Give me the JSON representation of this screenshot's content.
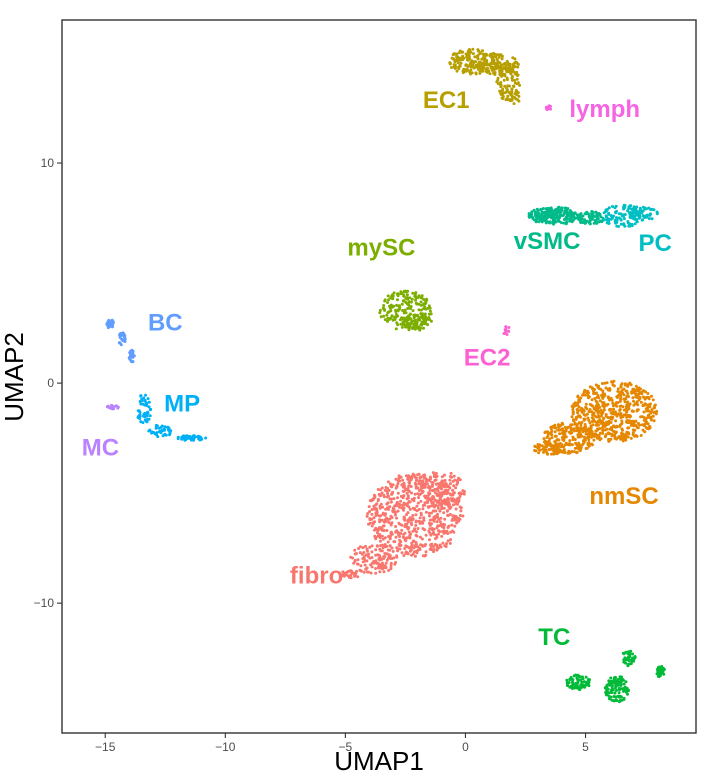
{
  "chart_data": {
    "type": "scatter",
    "title": "",
    "xlabel": "UMAP1",
    "ylabel": "UMAP2",
    "xlim": [
      -16.8,
      9.6
    ],
    "ylim": [
      -15.9,
      16.5
    ],
    "xticks": [
      -15,
      -10,
      -5,
      0,
      5
    ],
    "yticks": [
      -10,
      0,
      10
    ],
    "xtick_labels": [
      "−15",
      "−10",
      "−5",
      "0",
      "5"
    ],
    "ytick_labels": [
      "−10",
      "0",
      "10"
    ],
    "grid": false,
    "legend": "none",
    "clusters": [
      {
        "name": "EC1",
        "color": "#B79F00",
        "label_at": [
          -0.8,
          12.5
        ],
        "regions": [
          {
            "cx": 0.3,
            "cy": 14.6,
            "rx": 1.0,
            "ry": 0.6,
            "n": 160
          },
          {
            "cx": 1.4,
            "cy": 14.5,
            "rx": 0.9,
            "ry": 0.5,
            "n": 120
          },
          {
            "cx": 1.8,
            "cy": 13.6,
            "rx": 0.5,
            "ry": 0.8,
            "n": 80
          },
          {
            "cx": 2.0,
            "cy": 13.0,
            "rx": 0.3,
            "ry": 0.3,
            "n": 20
          }
        ]
      },
      {
        "name": "lymph",
        "color": "#F564E3",
        "label_at": [
          5.8,
          12.1
        ],
        "regions": [
          {
            "cx": 3.5,
            "cy": 12.5,
            "rx": 0.15,
            "ry": 0.1,
            "n": 12
          }
        ]
      },
      {
        "name": "vSMC",
        "color": "#00BA8A",
        "label_at": [
          3.4,
          6.1
        ],
        "regions": [
          {
            "cx": 3.7,
            "cy": 7.6,
            "rx": 1.1,
            "ry": 0.4,
            "n": 200
          },
          {
            "cx": 5.2,
            "cy": 7.5,
            "rx": 0.6,
            "ry": 0.3,
            "n": 80
          }
        ]
      },
      {
        "name": "PC",
        "color": "#00BFC4",
        "label_at": [
          7.9,
          6.0
        ],
        "regions": [
          {
            "cx": 6.6,
            "cy": 7.6,
            "rx": 0.9,
            "ry": 0.5,
            "n": 100
          },
          {
            "cx": 7.4,
            "cy": 7.7,
            "rx": 0.6,
            "ry": 0.3,
            "n": 60
          }
        ]
      },
      {
        "name": "mySC",
        "color": "#7CAE00",
        "label_at": [
          -3.5,
          5.8
        ],
        "regions": [
          {
            "cx": -2.5,
            "cy": 3.3,
            "rx": 1.1,
            "ry": 0.9,
            "n": 200
          },
          {
            "cx": -2.0,
            "cy": 2.8,
            "rx": 0.6,
            "ry": 0.4,
            "n": 60
          }
        ]
      },
      {
        "name": "EC2",
        "color": "#FD61D1",
        "label_at": [
          0.9,
          0.8
        ],
        "regions": [
          {
            "cx": 1.7,
            "cy": 2.4,
            "rx": 0.15,
            "ry": 0.2,
            "n": 10
          }
        ]
      },
      {
        "name": "BC",
        "color": "#619CFF",
        "label_at": [
          -12.5,
          2.4
        ],
        "regions": [
          {
            "cx": -14.8,
            "cy": 2.7,
            "rx": 0.15,
            "ry": 0.2,
            "n": 30
          },
          {
            "cx": -14.3,
            "cy": 2.0,
            "rx": 0.15,
            "ry": 0.3,
            "n": 25
          },
          {
            "cx": -13.9,
            "cy": 1.2,
            "rx": 0.12,
            "ry": 0.3,
            "n": 25
          }
        ]
      },
      {
        "name": "MP",
        "color": "#00B0F6",
        "label_at": [
          -11.8,
          -1.3
        ],
        "regions": [
          {
            "cx": -13.4,
            "cy": -1.2,
            "rx": 0.3,
            "ry": 0.7,
            "n": 50
          },
          {
            "cx": -12.7,
            "cy": -2.2,
            "rx": 0.5,
            "ry": 0.3,
            "n": 40
          },
          {
            "cx": -11.4,
            "cy": -2.5,
            "rx": 0.6,
            "ry": 0.12,
            "n": 40
          }
        ]
      },
      {
        "name": "MC",
        "color": "#B983FF",
        "label_at": [
          -15.2,
          -3.3
        ],
        "regions": [
          {
            "cx": -14.7,
            "cy": -1.1,
            "rx": 0.3,
            "ry": 0.1,
            "n": 15
          }
        ]
      },
      {
        "name": "nmSC",
        "color": "#E58700",
        "label_at": [
          6.6,
          -5.5
        ],
        "regions": [
          {
            "cx": 6.2,
            "cy": -1.3,
            "rx": 1.8,
            "ry": 1.4,
            "n": 550
          },
          {
            "cx": 4.3,
            "cy": -2.5,
            "rx": 1.1,
            "ry": 0.7,
            "n": 200
          },
          {
            "cx": 3.5,
            "cy": -3.0,
            "rx": 0.7,
            "ry": 0.3,
            "n": 60
          }
        ]
      },
      {
        "name": "fibro",
        "color": "#F8766D",
        "label_at": [
          -6.2,
          -9.1
        ],
        "regions": [
          {
            "cx": -2.1,
            "cy": -6.0,
            "rx": 2.0,
            "ry": 1.9,
            "n": 650
          },
          {
            "cx": -1.0,
            "cy": -4.8,
            "rx": 1.0,
            "ry": 0.8,
            "n": 120
          },
          {
            "cx": -3.8,
            "cy": -8.0,
            "rx": 1.0,
            "ry": 0.7,
            "n": 120
          },
          {
            "cx": -4.8,
            "cy": -8.7,
            "rx": 0.4,
            "ry": 0.2,
            "n": 30
          }
        ]
      },
      {
        "name": "TC",
        "color": "#00BA38",
        "label_at": [
          3.7,
          -11.9
        ],
        "regions": [
          {
            "cx": 4.7,
            "cy": -13.6,
            "rx": 0.5,
            "ry": 0.35,
            "n": 70
          },
          {
            "cx": 6.3,
            "cy": -13.9,
            "rx": 0.5,
            "ry": 0.6,
            "n": 110
          },
          {
            "cx": 6.8,
            "cy": -12.5,
            "rx": 0.3,
            "ry": 0.35,
            "n": 40
          },
          {
            "cx": 8.1,
            "cy": -13.1,
            "rx": 0.2,
            "ry": 0.25,
            "n": 30
          }
        ]
      }
    ]
  }
}
